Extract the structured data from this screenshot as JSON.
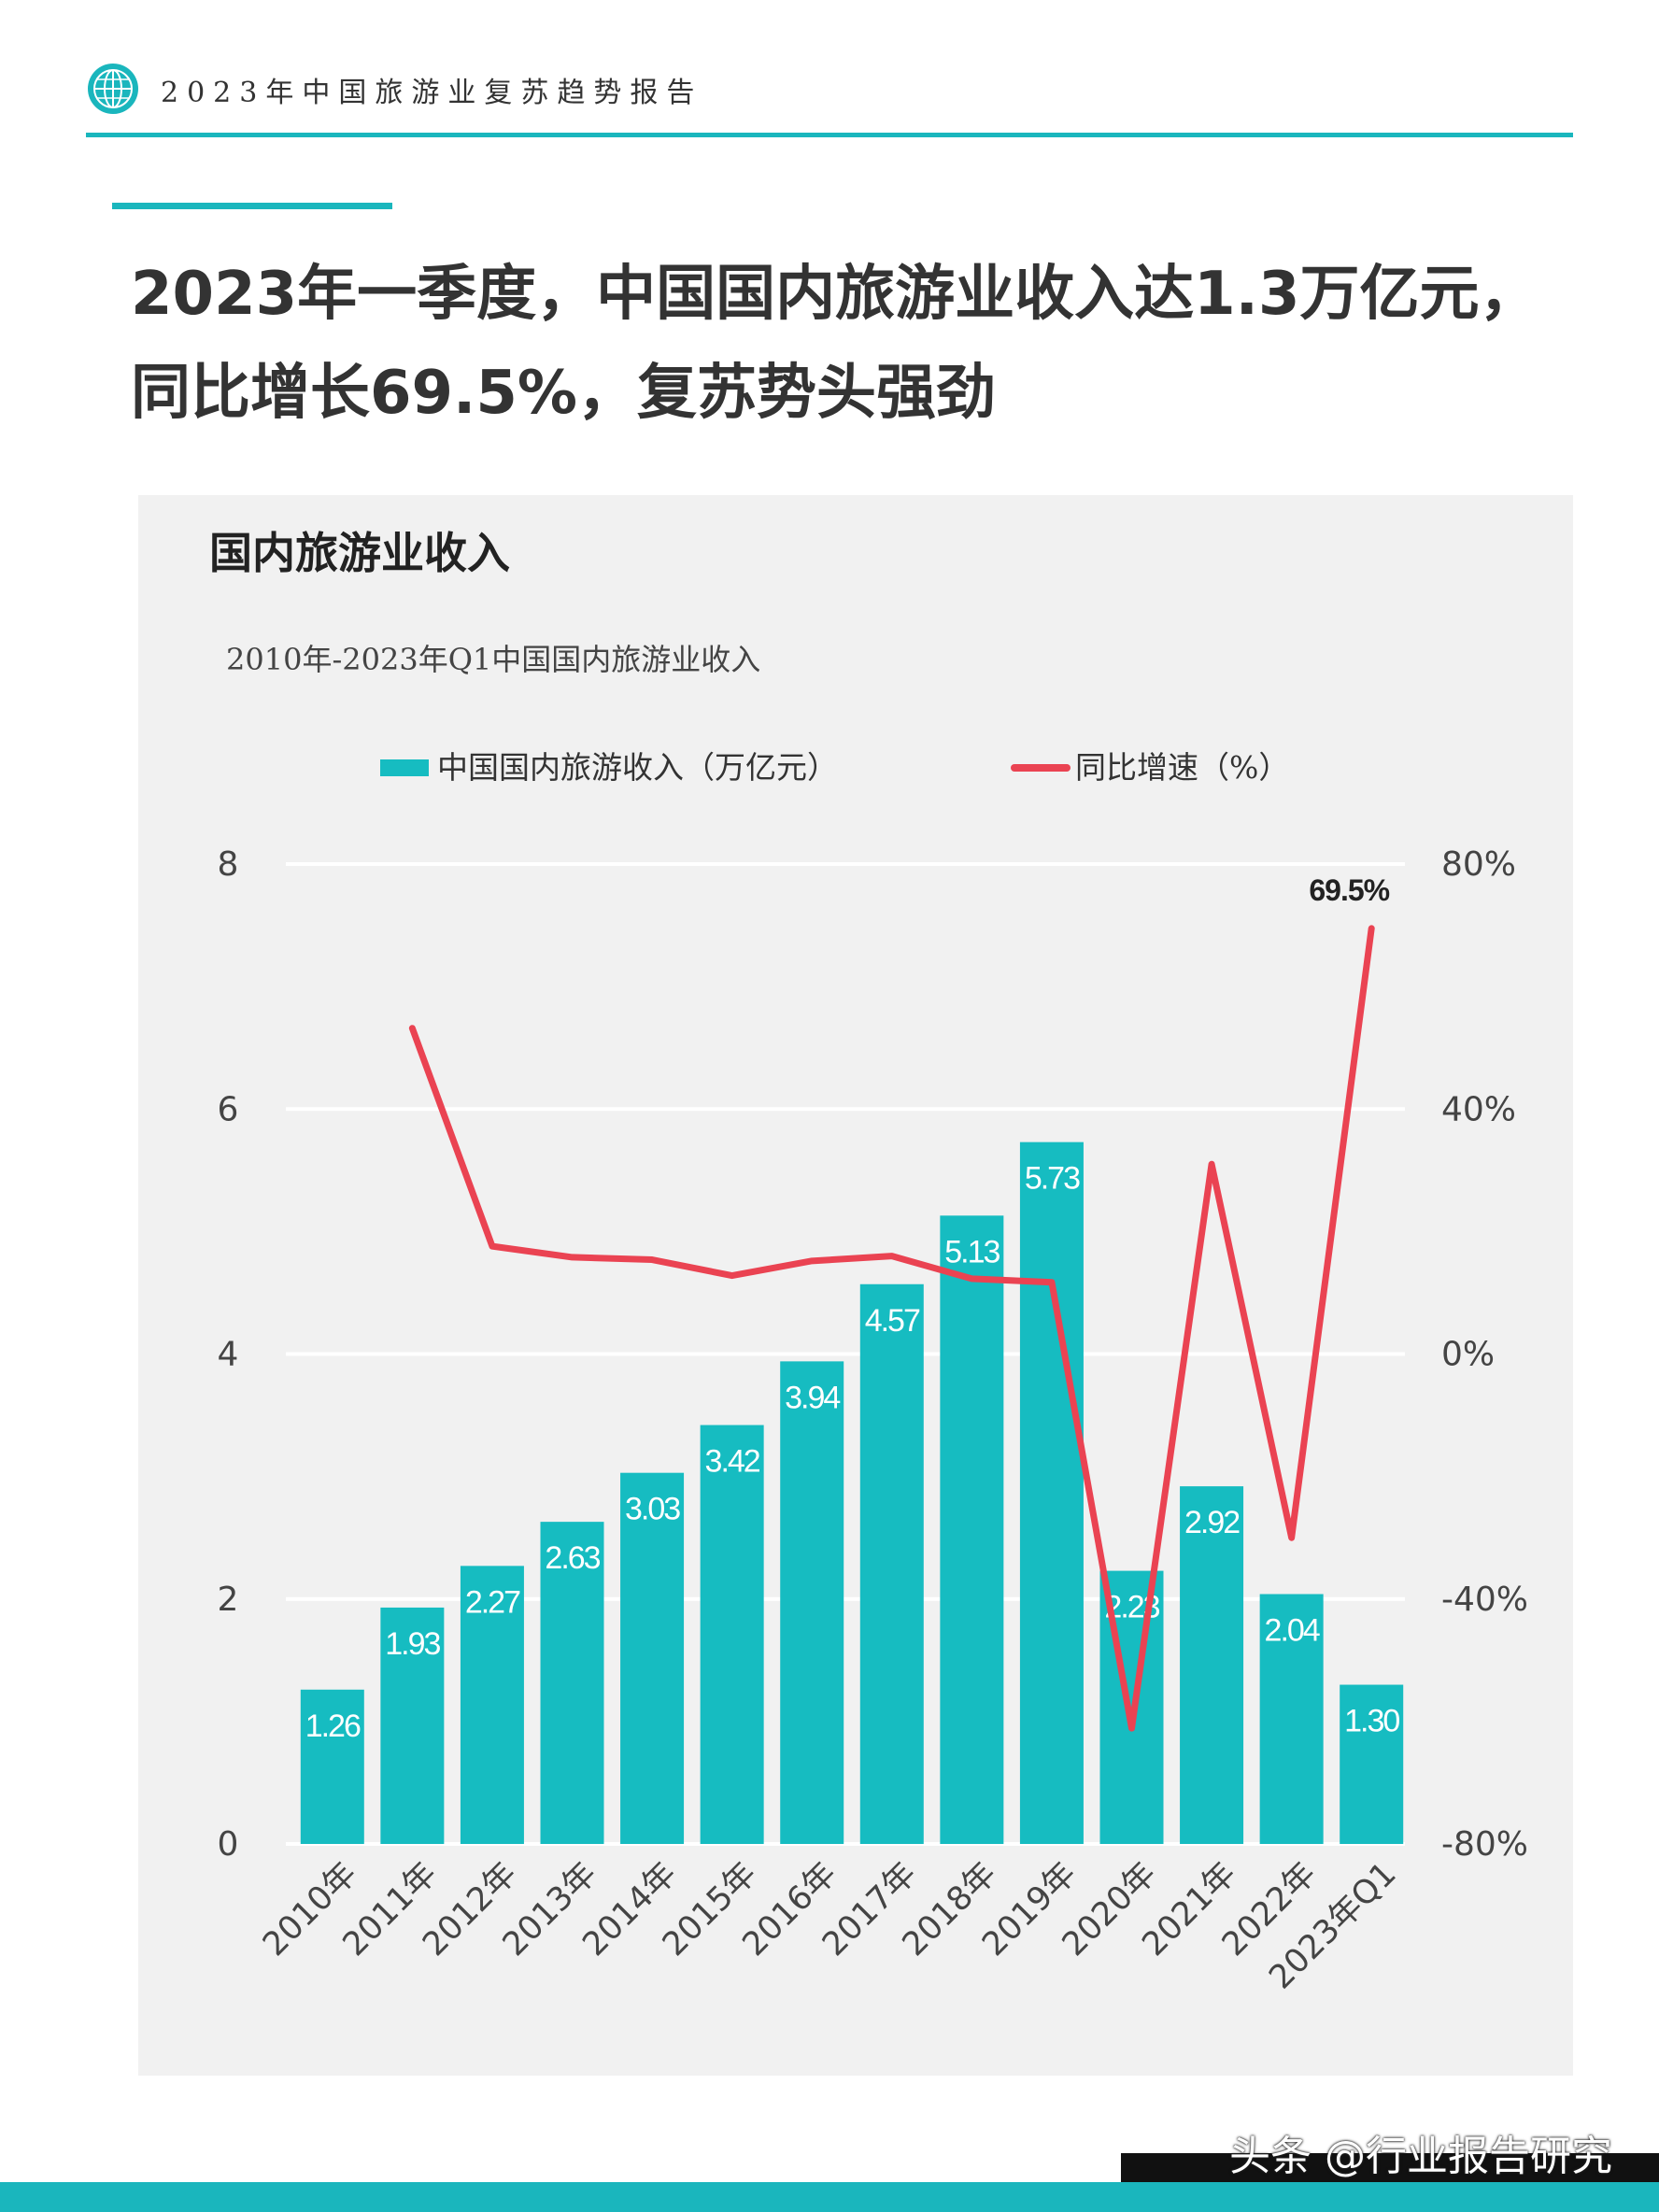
{
  "header": {
    "title": "2023年中国旅游业复苏趋势报告",
    "logo_icon": "globe-icon"
  },
  "headline": {
    "line1": "2023年一季度，中国国内旅游业收入达1.3万亿元，",
    "line2": "同比增长69.5%，复苏势头强劲"
  },
  "watermark": "头条 @行业报告研究",
  "colors": {
    "accent": "#1ab6bd",
    "bar": "#16bcc1",
    "line": "#ea4352",
    "panel": "#f1f1f1"
  },
  "chart_data": {
    "type": "bar",
    "title": "国内旅游业收入",
    "subtitle": "2010年-2023年Q1中国国内旅游业收入",
    "categories": [
      "2010年",
      "2011年",
      "2012年",
      "2013年",
      "2014年",
      "2015年",
      "2016年",
      "2017年",
      "2018年",
      "2019年",
      "2020年",
      "2021年",
      "2022年",
      "2023年Q1"
    ],
    "series": [
      {
        "name": "中国国内旅游收入（万亿元）",
        "type": "bar",
        "axis": "left",
        "values": [
          1.26,
          1.93,
          2.27,
          2.63,
          3.03,
          3.42,
          3.94,
          4.57,
          5.13,
          5.73,
          2.23,
          2.92,
          2.04,
          1.3
        ],
        "labels": [
          "1.26",
          "1.93",
          "2.27",
          "2.63",
          "3.03",
          "3.42",
          "3.94",
          "4.57",
          "5.13",
          "5.73",
          "2.23",
          "2.92",
          "2.04",
          "1.30"
        ]
      },
      {
        "name": "同比增速（%）",
        "type": "line",
        "axis": "right",
        "values": [
          null,
          53.2,
          17.6,
          15.8,
          15.4,
          12.8,
          15.2,
          16.0,
          12.3,
          11.7,
          -61.1,
          31.0,
          -30.0,
          69.5
        ],
        "labels": [
          null,
          null,
          null,
          null,
          null,
          null,
          null,
          null,
          null,
          null,
          null,
          null,
          null,
          "69.5%"
        ]
      }
    ],
    "y_left": {
      "min": 0,
      "max": 8,
      "ticks": [
        "0",
        "2",
        "4",
        "6",
        "8"
      ],
      "tick_values": [
        0,
        2,
        4,
        6,
        8
      ]
    },
    "y_right": {
      "min": -80,
      "max": 80,
      "ticks": [
        "-80%",
        "-40%",
        "0%",
        "40%",
        "80%"
      ],
      "tick_values": [
        -80,
        -40,
        0,
        40,
        80
      ]
    },
    "grid": true,
    "legend_position": "top"
  }
}
